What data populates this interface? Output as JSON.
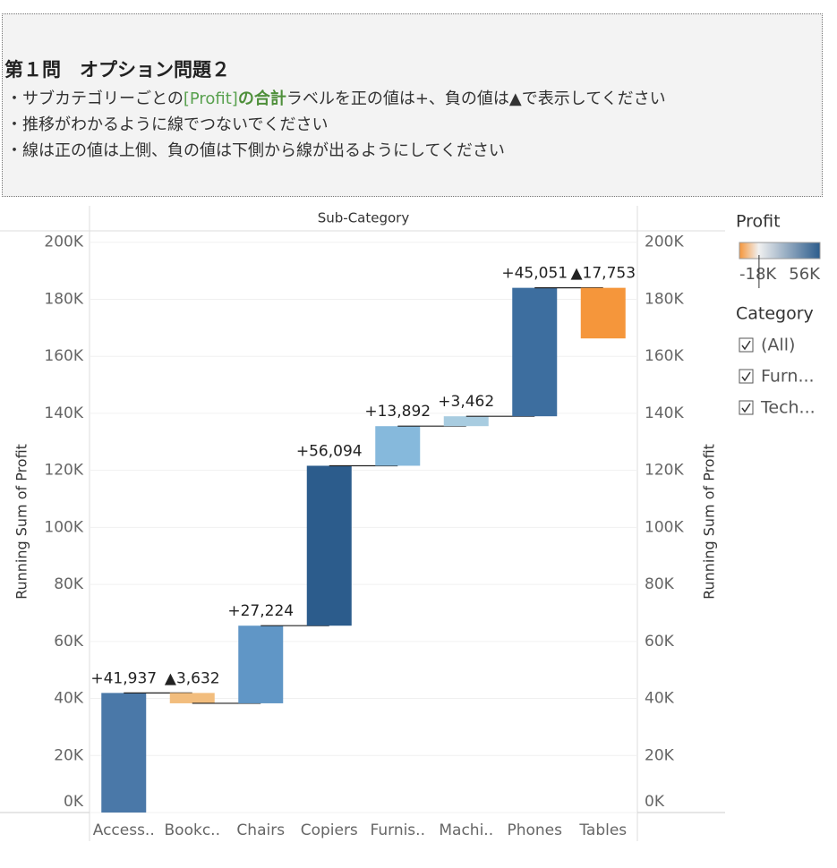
{
  "header": {
    "title": "第１問　オプション問題２",
    "lines": [
      [
        "・サブカテゴリーごとの",
        "[Profit]",
        "の合計",
        "ラベルを正の値は+、負の値は▲で表示してください"
      ],
      [
        "・推移がわかるように線でつないでください"
      ],
      [
        "・線は正の値は上側、負の値は下側から線が出るようにしてください"
      ]
    ]
  },
  "chart_data": {
    "type": "waterfall",
    "x_header": "Sub-Category",
    "y_label": "Running Sum of Profit",
    "y2_label": "Running Sum of Profit",
    "categories": [
      "Access..",
      "Bookc..",
      "Chairs",
      "Copiers",
      "Furnis..",
      "Machi..",
      "Phones",
      "Tables"
    ],
    "values": [
      41937,
      -3632,
      27224,
      56094,
      13892,
      3462,
      45051,
      -17753
    ],
    "value_labels": [
      "+41,937",
      "▲3,632",
      "+27,224",
      "+56,094",
      "+13,892",
      "+3,462",
      "+45,051",
      "▲17,753"
    ],
    "colors": [
      "#4a78a8",
      "#f2bd7d",
      "#6096c6",
      "#2c5c8c",
      "#86b9dc",
      "#a8cce0",
      "#3d6e9f",
      "#f5963b"
    ],
    "ylim": [
      0,
      204000
    ],
    "yticks": [
      {
        "value": 0,
        "label": "0K"
      },
      {
        "value": 20000,
        "label": "20K"
      },
      {
        "value": 40000,
        "label": "40K"
      },
      {
        "value": 60000,
        "label": "60K"
      },
      {
        "value": 80000,
        "label": "80K"
      },
      {
        "value": 100000,
        "label": "100K"
      },
      {
        "value": 120000,
        "label": "120K"
      },
      {
        "value": 140000,
        "label": "140K"
      },
      {
        "value": 160000,
        "label": "160K"
      },
      {
        "value": 180000,
        "label": "180K"
      },
      {
        "value": 200000,
        "label": "200K"
      }
    ],
    "grid": true,
    "color_legend": {
      "title": "Profit",
      "min": {
        "value": -18000,
        "label": "-18K"
      },
      "max": {
        "value": 56000,
        "label": "56K"
      },
      "low_color": "#f5963b",
      "high_color": "#2c5c8c"
    },
    "category_legend": {
      "title": "Category",
      "items": [
        "(All)",
        "Furn...",
        "Tech..."
      ]
    }
  }
}
